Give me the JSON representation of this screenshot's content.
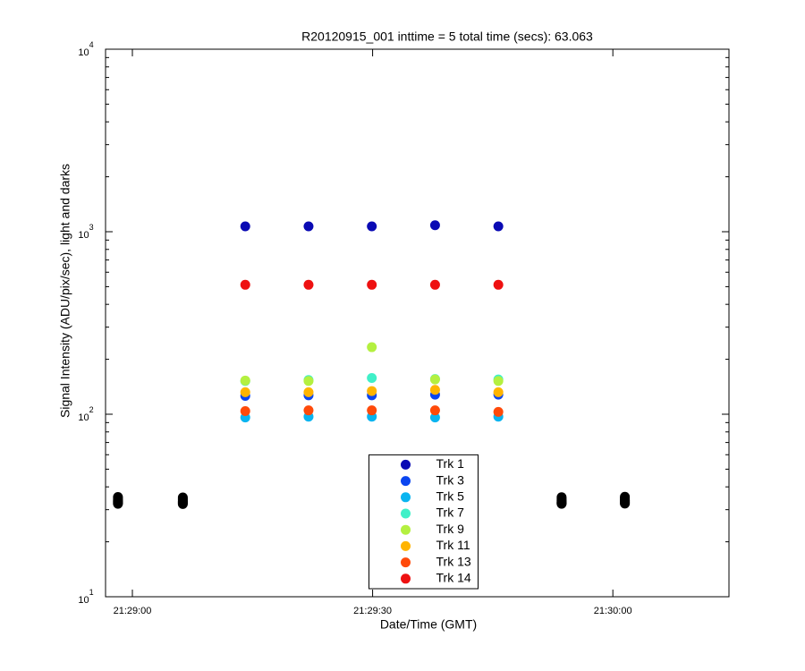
{
  "chart_data": {
    "type": "scatter",
    "title": "R20120915_001 inttime = 5 total time (secs): 63.063",
    "x_label": "Date/Time (GMT)",
    "y_label": "Signal Intensity (ADU/pix/sec), light and darks",
    "y_scale": "log",
    "xlim": [
      -3.35,
      74.5
    ],
    "ylim": [
      10,
      10000
    ],
    "xticks": [
      {
        "value": 0,
        "label": "21:29:00"
      },
      {
        "value": 30,
        "label": "21:29:30"
      },
      {
        "value": 60,
        "label": "21:30:00"
      }
    ],
    "yticks": [
      {
        "value": 10,
        "label": "10",
        "exponent": "1"
      },
      {
        "value": 100,
        "label": "10",
        "exponent": "2"
      },
      {
        "value": 1000,
        "label": "10",
        "exponent": "3"
      },
      {
        "value": 10000,
        "label": "10",
        "exponent": "4"
      }
    ],
    "grid": false,
    "legend": "lower center",
    "x": [
      14.1,
      22.0,
      29.9,
      37.8,
      45.7
    ],
    "series": [
      {
        "name": "Trk 1",
        "color": "#0a0ab4",
        "values": [
          1070,
          1070,
          1070,
          1085,
          1070
        ]
      },
      {
        "name": "Trk 3",
        "color": "#0a45f0",
        "values": [
          126,
          127,
          127,
          128,
          128
        ]
      },
      {
        "name": "Trk 5",
        "color": "#0ab4f0",
        "values": [
          96,
          97,
          97,
          96,
          97
        ]
      },
      {
        "name": "Trk 7",
        "color": "#40f0c8",
        "values": [
          152,
          154,
          158,
          156,
          155
        ]
      },
      {
        "name": "Trk 9",
        "color": "#b4f040",
        "values": [
          153,
          152,
          233,
          155,
          152
        ]
      },
      {
        "name": "Trk 11",
        "color": "#ffb400",
        "values": [
          132,
          132,
          134,
          136,
          132
        ]
      },
      {
        "name": "Trk 13",
        "color": "#ff4a0a",
        "values": [
          104,
          105,
          105,
          105,
          103
        ]
      },
      {
        "name": "Trk 14",
        "color": "#ee1111",
        "values": [
          512,
          512,
          512,
          512,
          512
        ]
      }
    ],
    "darks": {
      "color": "#000000",
      "x": [
        -1.8,
        6.3,
        53.6,
        61.5
      ],
      "series": [
        {
          "values": [
            35.2,
            35.0,
            35.1,
            35.3
          ]
        },
        {
          "values": [
            34.6,
            34.5,
            34.4,
            34.7
          ]
        },
        {
          "values": [
            34.0,
            33.9,
            33.8,
            34.1
          ]
        },
        {
          "values": [
            33.5,
            33.4,
            33.3,
            33.6
          ]
        },
        {
          "values": [
            33.2,
            33.1,
            33.0,
            33.3
          ]
        },
        {
          "values": [
            32.9,
            32.8,
            32.7,
            33.0
          ]
        },
        {
          "values": [
            32.6,
            32.5,
            32.5,
            32.7
          ]
        },
        {
          "values": [
            32.3,
            32.2,
            32.3,
            32.4
          ]
        }
      ]
    }
  }
}
